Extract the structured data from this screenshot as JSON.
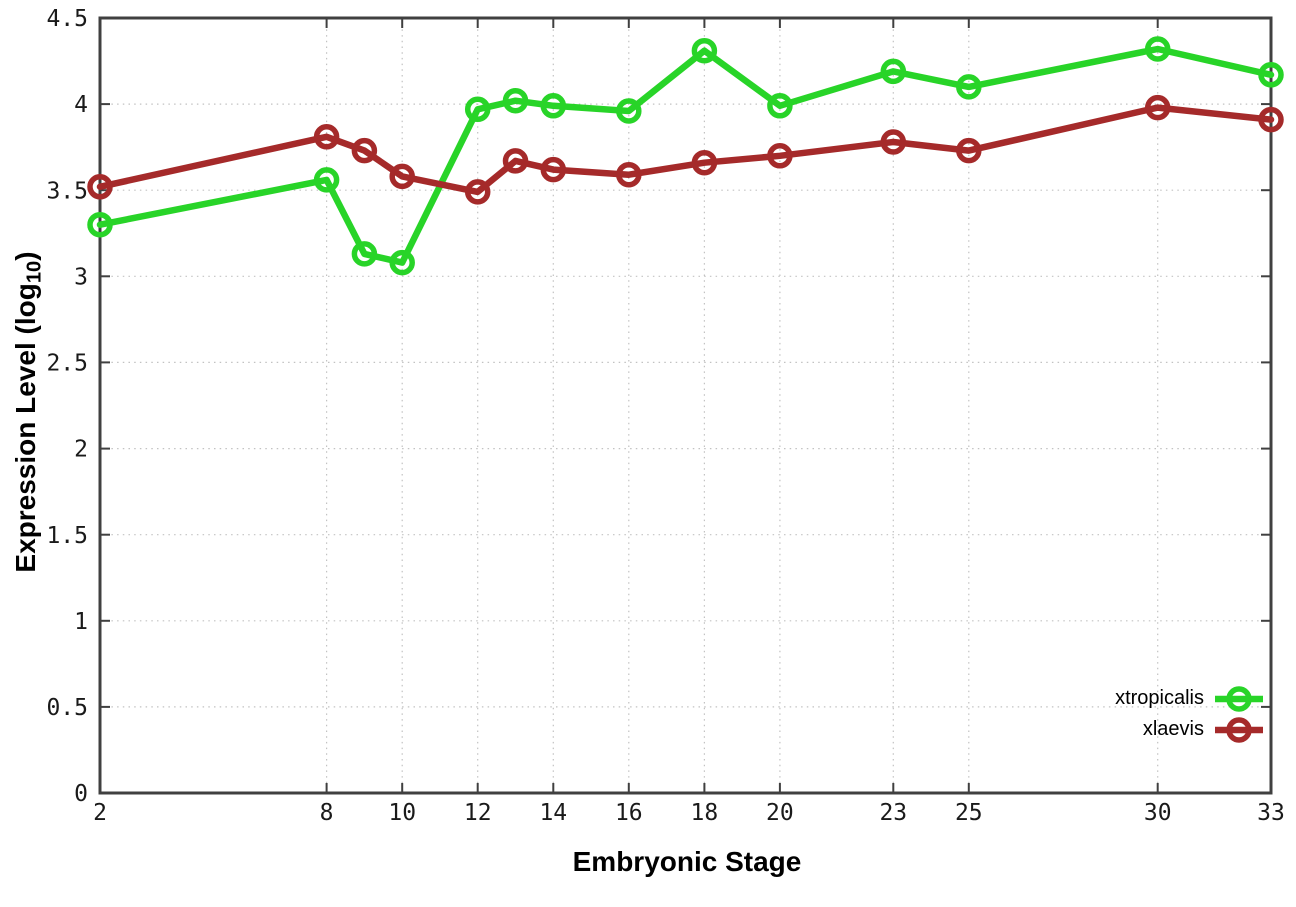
{
  "chart_data": {
    "type": "line",
    "title": "",
    "xlabel": "Embryonic Stage",
    "ylabel": "Expression Level (log10)",
    "ylabel_parts": {
      "main": "Expression Level (log",
      "sub": "10",
      "end": ")"
    },
    "x": [
      2,
      8,
      9,
      10,
      12,
      13,
      14,
      16,
      18,
      20,
      23,
      25,
      30,
      33
    ],
    "series": [
      {
        "name": "xtropicalis",
        "color": "#28d428",
        "values": [
          3.3,
          3.56,
          3.13,
          3.08,
          3.97,
          4.02,
          3.99,
          3.96,
          4.31,
          3.99,
          4.19,
          4.1,
          4.32,
          4.17
        ]
      },
      {
        "name": "xlaevis",
        "color": "#a52a2a",
        "values": [
          3.52,
          3.81,
          3.73,
          3.58,
          3.49,
          3.67,
          3.62,
          3.59,
          3.66,
          3.7,
          3.78,
          3.73,
          3.98,
          3.91
        ]
      }
    ],
    "xlim": [
      2,
      33
    ],
    "ylim": [
      0,
      4.5
    ],
    "x_ticks": [
      {
        "v": 2,
        "label": "2"
      },
      {
        "v": 8,
        "label": "8"
      },
      {
        "v": 10,
        "label": "10"
      },
      {
        "v": 12,
        "label": "12"
      },
      {
        "v": 14,
        "label": "14"
      },
      {
        "v": 16,
        "label": "16"
      },
      {
        "v": 18,
        "label": "18"
      },
      {
        "v": 20,
        "label": "20"
      },
      {
        "v": 23,
        "label": "23"
      },
      {
        "v": 25,
        "label": "25"
      },
      {
        "v": 30,
        "label": "30"
      },
      {
        "v": 33,
        "label": "33"
      }
    ],
    "y_ticks": [
      {
        "v": 0,
        "label": "0"
      },
      {
        "v": 0.5,
        "label": "0.5"
      },
      {
        "v": 1,
        "label": "1"
      },
      {
        "v": 1.5,
        "label": "1.5"
      },
      {
        "v": 2,
        "label": "2"
      },
      {
        "v": 2.5,
        "label": "2.5"
      },
      {
        "v": 3,
        "label": "3"
      },
      {
        "v": 3.5,
        "label": "3.5"
      },
      {
        "v": 4,
        "label": "4"
      },
      {
        "v": 4.5,
        "label": "4.5"
      }
    ],
    "grid": true,
    "legend_position": "inside-bottom-right",
    "axis_color": "#404040",
    "grid_color": "#c2c2c2",
    "text_color": "#000000"
  }
}
